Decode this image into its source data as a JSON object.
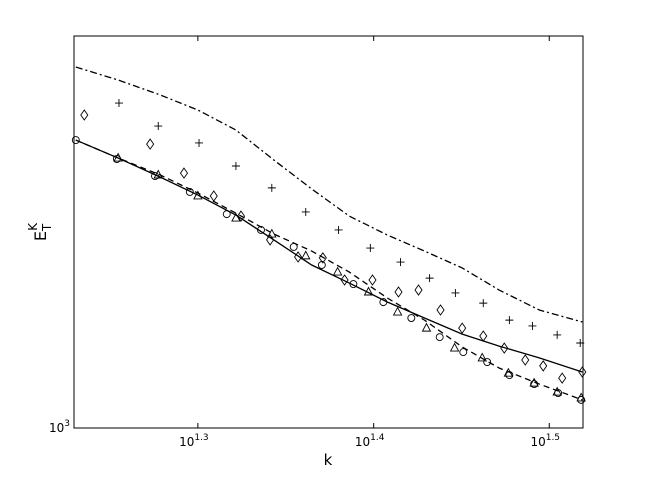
{
  "chart_data": {
    "type": "line",
    "xlabel": "k",
    "ylabel": {
      "text": "E",
      "subscript": "T",
      "superscript": "K"
    },
    "xlog": true,
    "ylog": true,
    "xlim": [
      16.96,
      33.05
    ],
    "ylim": [
      1000,
      3000
    ],
    "xticks": [
      {
        "value": 19.95,
        "label": "10",
        "exponent": "1.3"
      },
      {
        "value": 25.12,
        "label": "10",
        "exponent": "1.4"
      },
      {
        "value": 31.62,
        "label": "10",
        "exponent": "1.5"
      }
    ],
    "yticks": [
      {
        "value": 1000,
        "label": "10",
        "exponent": "3"
      }
    ],
    "x": [
      17.0,
      17.97,
      18.99,
      19.95,
      20.97,
      22.04,
      23.16,
      24.33,
      25.58,
      26.85,
      28.21,
      29.61,
      31.21,
      33.02
    ],
    "series": [
      {
        "color": "#000000",
        "dash": "solid",
        "values": [
          2241,
          2131,
          2020,
          1921,
          1816,
          1694,
          1579,
          1501,
          1423,
          1361,
          1301,
          1258,
          1217,
          1170
        ]
      },
      {
        "color": "#000000",
        "dash": "dashed",
        "values": [
          2241,
          2131,
          2032,
          1932,
          1826,
          1722,
          1642,
          1548,
          1439,
          1353,
          1255,
          1183,
          1131,
          1082
        ]
      },
      {
        "color": "#000000",
        "dash": "dashdot",
        "values": [
          2750,
          2652,
          2543,
          2438,
          2305,
          2119,
          1954,
          1811,
          1717,
          1642,
          1566,
          1472,
          1392,
          1346
        ]
      },
      {
        "color": "#000000",
        "marker": "plus",
        "x": [
          17.99,
          18.94,
          19.98,
          20.97,
          21.98,
          22.98,
          23.99,
          25.01,
          26.02,
          27.03,
          27.96,
          29.0,
          30.01,
          30.93,
          31.95,
          32.93
        ],
        "values": [
          2486,
          2331,
          2223,
          2084,
          1960,
          1832,
          1742,
          1656,
          1592,
          1522,
          1460,
          1419,
          1353,
          1331,
          1298,
          1269
        ]
      },
      {
        "color": "#000000",
        "marker": "diamond",
        "x": [
          17.19,
          18.74,
          19.59,
          20.37,
          21.11,
          21.93,
          22.75,
          23.5,
          24.18,
          25.08,
          25.95,
          26.64,
          27.42,
          28.21,
          29.0,
          29.81,
          30.64,
          31.37,
          32.16,
          33.02
        ],
        "values": [
          2404,
          2216,
          2043,
          1916,
          1811,
          1694,
          1615,
          1611,
          1514,
          1514,
          1464,
          1472,
          1392,
          1323,
          1294,
          1251,
          1210,
          1190,
          1150,
          1170
        ]
      },
      {
        "color": "#000000",
        "marker": "circle",
        "x": [
          17.0,
          17.94,
          18.86,
          19.74,
          20.72,
          21.67,
          22.62,
          23.47,
          24.46,
          25.44,
          26.39,
          27.39,
          28.25,
          29.15,
          30.01,
          31.0,
          31.99,
          32.97
        ],
        "values": [
          2241,
          2125,
          2026,
          1938,
          1821,
          1742,
          1661,
          1579,
          1497,
          1423,
          1361,
          1290,
          1237,
          1203,
          1160,
          1131,
          1103,
          1082
        ]
      },
      {
        "color": "#000000",
        "marker": "triangle",
        "x": [
          17.97,
          18.94,
          19.95,
          20.97,
          21.98,
          22.98,
          23.96,
          24.95,
          25.92,
          26.92,
          27.93,
          28.96,
          29.97,
          31.0,
          31.95,
          32.97
        ],
        "values": [
          2131,
          2032,
          1916,
          1801,
          1722,
          1620,
          1548,
          1464,
          1384,
          1323,
          1251,
          1217,
          1166,
          1134,
          1106,
          1088
        ]
      }
    ]
  }
}
